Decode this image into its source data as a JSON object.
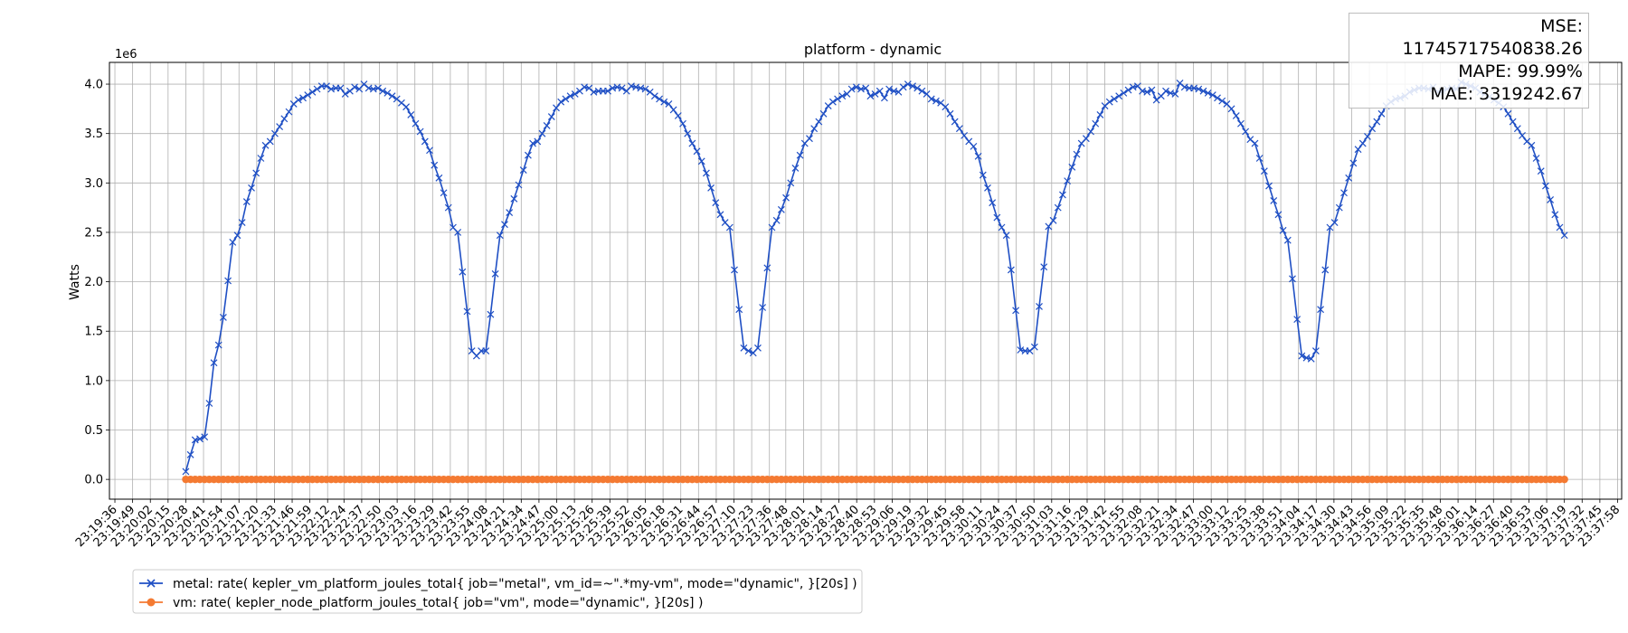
{
  "chart_data": {
    "type": "line",
    "title": "platform - dynamic",
    "xlabel": "",
    "ylabel": "Watts",
    "y_scale_label": "1e6",
    "ylim": [
      -0.2,
      4.22
    ],
    "yticks": [
      "0.0",
      "0.5",
      "1.0",
      "1.5",
      "2.0",
      "2.5",
      "3.0",
      "3.5",
      "4.0"
    ],
    "ytick_values": [
      0.0,
      0.5,
      1.0,
      1.5,
      2.0,
      2.5,
      3.0,
      3.5,
      4.0
    ],
    "xtick_labels": [
      "23:19:36",
      "23:19:49",
      "23:20:02",
      "23:20:15",
      "23:20:28",
      "23:20:41",
      "23:20:54",
      "23:21:07",
      "23:21:20",
      "23:21:33",
      "23:21:46",
      "23:21:59",
      "23:22:12",
      "23:22:24",
      "23:22:37",
      "23:22:50",
      "23:23:03",
      "23:23:16",
      "23:23:29",
      "23:23:42",
      "23:23:55",
      "23:24:08",
      "23:24:21",
      "23:24:34",
      "23:24:47",
      "23:25:00",
      "23:25:13",
      "23:25:26",
      "23:25:39",
      "23:25:52",
      "23:26:05",
      "23:26:18",
      "23:26:31",
      "23:26:44",
      "23:26:57",
      "23:27:10",
      "23:27:23",
      "23:27:36",
      "23:27:48",
      "23:28:01",
      "23:28:14",
      "23:28:27",
      "23:28:40",
      "23:28:53",
      "23:29:06",
      "23:29:19",
      "23:29:32",
      "23:29:45",
      "23:29:58",
      "23:30:11",
      "23:30:24",
      "23:30:37",
      "23:30:50",
      "23:31:03",
      "23:31:16",
      "23:31:29",
      "23:31:42",
      "23:31:55",
      "23:32:08",
      "23:32:21",
      "23:32:34",
      "23:32:47",
      "23:33:00",
      "23:33:12",
      "23:33:25",
      "23:33:38",
      "23:33:51",
      "23:34:04",
      "23:34:17",
      "23:34:30",
      "23:34:43",
      "23:34:56",
      "23:35:09",
      "23:35:22",
      "23:35:35",
      "23:35:48",
      "23:36:01",
      "23:36:14",
      "23:36:27",
      "23:36:40",
      "23:36:53",
      "23:37:06",
      "23:37:19",
      "23:37:32",
      "23:37:45",
      "23:37:58"
    ],
    "grid": true,
    "legend_position": "bottom-left outside",
    "series": [
      {
        "name": "metal: rate( kepler_vm_platform_joules_total{ job=\"metal\", vm_id=~\".*my-vm\", mode=\"dynamic\", }[20s] )",
        "color": "#1f4fc4",
        "marker": "x",
        "t_start": "23:20:28",
        "t_end": "23:37:19",
        "values": [
          0.08,
          0.25,
          0.4,
          0.41,
          0.43,
          0.77,
          1.18,
          1.36,
          1.64,
          2.01,
          2.4,
          2.47,
          2.6,
          2.81,
          2.95,
          3.1,
          3.25,
          3.38,
          3.42,
          3.5,
          3.57,
          3.65,
          3.72,
          3.8,
          3.84,
          3.86,
          3.89,
          3.92,
          3.95,
          3.98,
          3.98,
          3.95,
          3.96,
          3.96,
          3.9,
          3.93,
          3.97,
          3.95,
          4.0,
          3.96,
          3.95,
          3.96,
          3.93,
          3.91,
          3.88,
          3.85,
          3.81,
          3.77,
          3.69,
          3.6,
          3.52,
          3.42,
          3.33,
          3.18,
          3.05,
          2.9,
          2.75,
          2.55,
          2.5,
          2.1,
          1.7,
          1.3,
          1.25,
          1.3,
          1.3,
          1.67,
          2.08,
          2.47,
          2.58,
          2.7,
          2.84,
          2.98,
          3.13,
          3.28,
          3.4,
          3.42,
          3.5,
          3.58,
          3.67,
          3.76,
          3.82,
          3.85,
          3.88,
          3.9,
          3.93,
          3.97,
          3.96,
          3.92,
          3.93,
          3.93,
          3.93,
          3.96,
          3.97,
          3.96,
          3.93,
          3.98,
          3.97,
          3.96,
          3.95,
          3.92,
          3.88,
          3.85,
          3.82,
          3.8,
          3.74,
          3.68,
          3.6,
          3.5,
          3.4,
          3.32,
          3.22,
          3.1,
          2.95,
          2.8,
          2.68,
          2.6,
          2.55,
          2.12,
          1.72,
          1.33,
          1.3,
          1.28,
          1.33,
          1.74,
          2.14,
          2.55,
          2.62,
          2.73,
          2.85,
          3.0,
          3.15,
          3.28,
          3.4,
          3.45,
          3.55,
          3.62,
          3.7,
          3.78,
          3.82,
          3.85,
          3.88,
          3.9,
          3.95,
          3.97,
          3.95,
          3.96,
          3.88,
          3.9,
          3.93,
          3.86,
          3.95,
          3.93,
          3.92,
          3.97,
          4.0,
          3.98,
          3.96,
          3.93,
          3.9,
          3.85,
          3.83,
          3.81,
          3.77,
          3.7,
          3.62,
          3.55,
          3.48,
          3.42,
          3.37,
          3.27,
          3.08,
          2.95,
          2.8,
          2.65,
          2.55,
          2.47,
          2.12,
          1.71,
          1.31,
          1.3,
          1.3,
          1.34,
          1.75,
          2.15,
          2.56,
          2.62,
          2.75,
          2.88,
          3.02,
          3.16,
          3.29,
          3.4,
          3.45,
          3.52,
          3.6,
          3.69,
          3.78,
          3.82,
          3.85,
          3.88,
          3.91,
          3.94,
          3.97,
          3.98,
          3.93,
          3.92,
          3.94,
          3.84,
          3.88,
          3.93,
          3.91,
          3.9,
          4.01,
          3.97,
          3.96,
          3.96,
          3.95,
          3.93,
          3.91,
          3.89,
          3.86,
          3.83,
          3.8,
          3.75,
          3.68,
          3.6,
          3.52,
          3.44,
          3.4,
          3.25,
          3.12,
          2.97,
          2.82,
          2.68,
          2.52,
          2.42,
          2.03,
          1.62,
          1.25,
          1.23,
          1.22,
          1.3,
          1.72,
          2.12,
          2.55,
          2.6,
          2.75,
          2.9,
          3.05,
          3.2,
          3.34,
          3.4,
          3.47,
          3.55,
          3.62,
          3.7,
          3.78,
          3.82,
          3.85,
          3.86,
          3.88,
          3.92,
          3.94,
          3.96,
          3.96,
          3.95,
          3.97,
          3.92,
          3.93,
          3.95,
          3.96,
          3.95,
          4.02,
          4.0,
          3.98,
          3.96,
          3.92,
          3.9,
          3.87,
          3.84,
          3.81,
          3.77,
          3.7,
          3.62,
          3.55,
          3.48,
          3.42,
          3.38,
          3.25,
          3.12,
          2.97,
          2.83,
          2.68,
          2.55,
          2.47
        ],
        "last_value": 2.47
      },
      {
        "name": "vm: rate( kepler_node_platform_joules_total{ job=\"vm\", mode=\"dynamic\", }[20s] )",
        "color": "#f47a32",
        "marker": "o",
        "t_start": "23:20:28",
        "t_end": "23:37:19",
        "constant_value": 0.0
      }
    ]
  },
  "metrics": {
    "mse": "MSE: 11745717540838.26",
    "mape": "MAPE: 99.99%",
    "mae": "MAE: 3319242.67"
  }
}
